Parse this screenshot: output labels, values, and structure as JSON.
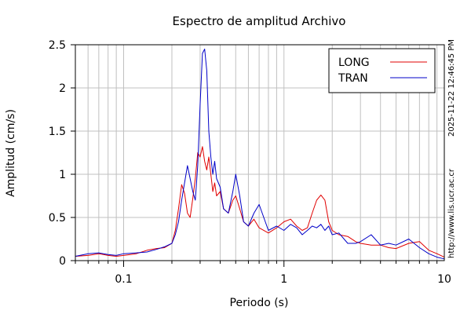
{
  "chart_data": {
    "type": "line",
    "title": "Espectro de amplitud Archivo",
    "xlabel": "Periodo (s)",
    "ylabel": "Amplitud (cm/s)",
    "x_scale": "log",
    "xlim": [
      0.05,
      10
    ],
    "ylim": [
      0,
      2.5
    ],
    "x_tick_labels": [
      "0.1",
      "1",
      "10"
    ],
    "x_tick_values": [
      0.1,
      1,
      10
    ],
    "y_tick_labels": [
      "0",
      "0.5",
      "1",
      "1.5",
      "2",
      "2.5"
    ],
    "y_tick_values": [
      0,
      0.5,
      1,
      1.5,
      2,
      2.5
    ],
    "grid": true,
    "legend_position": "top-right",
    "side_annotations": [
      "2025-11-22 12:46:45 PM",
      "http://www.lis.ucr.ac.cr"
    ],
    "series": [
      {
        "name": "LONG",
        "color": "#e00000",
        "x": [
          0.05,
          0.06,
          0.07,
          0.08,
          0.09,
          0.1,
          0.12,
          0.14,
          0.16,
          0.18,
          0.2,
          0.21,
          0.22,
          0.23,
          0.24,
          0.25,
          0.26,
          0.27,
          0.28,
          0.29,
          0.3,
          0.31,
          0.32,
          0.33,
          0.34,
          0.35,
          0.36,
          0.37,
          0.38,
          0.4,
          0.42,
          0.45,
          0.48,
          0.5,
          0.53,
          0.56,
          0.6,
          0.65,
          0.7,
          0.8,
          0.9,
          1.0,
          1.1,
          1.2,
          1.3,
          1.4,
          1.5,
          1.6,
          1.7,
          1.8,
          1.9,
          2.0,
          2.2,
          2.5,
          2.8,
          3.0,
          3.5,
          4.0,
          4.5,
          5.0,
          6.0,
          7.0,
          8.0,
          9.0,
          10.0
        ],
        "values": [
          0.05,
          0.06,
          0.08,
          0.06,
          0.05,
          0.06,
          0.08,
          0.12,
          0.14,
          0.15,
          0.2,
          0.35,
          0.6,
          0.88,
          0.78,
          0.55,
          0.5,
          0.72,
          0.95,
          1.25,
          1.2,
          1.32,
          1.15,
          1.05,
          1.2,
          1.0,
          0.8,
          0.9,
          0.75,
          0.8,
          0.6,
          0.55,
          0.7,
          0.75,
          0.6,
          0.45,
          0.4,
          0.48,
          0.38,
          0.32,
          0.38,
          0.45,
          0.48,
          0.4,
          0.35,
          0.38,
          0.55,
          0.7,
          0.76,
          0.7,
          0.45,
          0.35,
          0.3,
          0.28,
          0.22,
          0.2,
          0.18,
          0.18,
          0.15,
          0.14,
          0.2,
          0.22,
          0.12,
          0.08,
          0.04
        ]
      },
      {
        "name": "TRAN",
        "color": "#0000c8",
        "x": [
          0.05,
          0.06,
          0.07,
          0.08,
          0.09,
          0.1,
          0.12,
          0.14,
          0.16,
          0.18,
          0.2,
          0.21,
          0.22,
          0.23,
          0.24,
          0.25,
          0.26,
          0.27,
          0.28,
          0.29,
          0.3,
          0.31,
          0.32,
          0.33,
          0.34,
          0.35,
          0.36,
          0.37,
          0.38,
          0.4,
          0.42,
          0.45,
          0.48,
          0.5,
          0.53,
          0.56,
          0.6,
          0.65,
          0.7,
          0.8,
          0.9,
          1.0,
          1.1,
          1.2,
          1.3,
          1.4,
          1.5,
          1.6,
          1.7,
          1.8,
          1.9,
          2.0,
          2.2,
          2.5,
          2.8,
          3.0,
          3.5,
          4.0,
          4.5,
          5.0,
          6.0,
          7.0,
          8.0,
          9.0,
          10.0
        ],
        "values": [
          0.05,
          0.08,
          0.09,
          0.07,
          0.06,
          0.08,
          0.09,
          0.1,
          0.13,
          0.16,
          0.2,
          0.3,
          0.45,
          0.7,
          0.9,
          1.1,
          0.95,
          0.8,
          0.7,
          1.1,
          1.8,
          2.4,
          2.45,
          2.2,
          1.5,
          1.2,
          1.0,
          1.15,
          0.95,
          0.85,
          0.6,
          0.55,
          0.8,
          1.0,
          0.75,
          0.45,
          0.4,
          0.55,
          0.65,
          0.35,
          0.4,
          0.35,
          0.42,
          0.38,
          0.3,
          0.35,
          0.4,
          0.38,
          0.42,
          0.35,
          0.4,
          0.3,
          0.32,
          0.2,
          0.2,
          0.22,
          0.3,
          0.18,
          0.2,
          0.18,
          0.25,
          0.15,
          0.08,
          0.04,
          0.02
        ]
      }
    ]
  }
}
